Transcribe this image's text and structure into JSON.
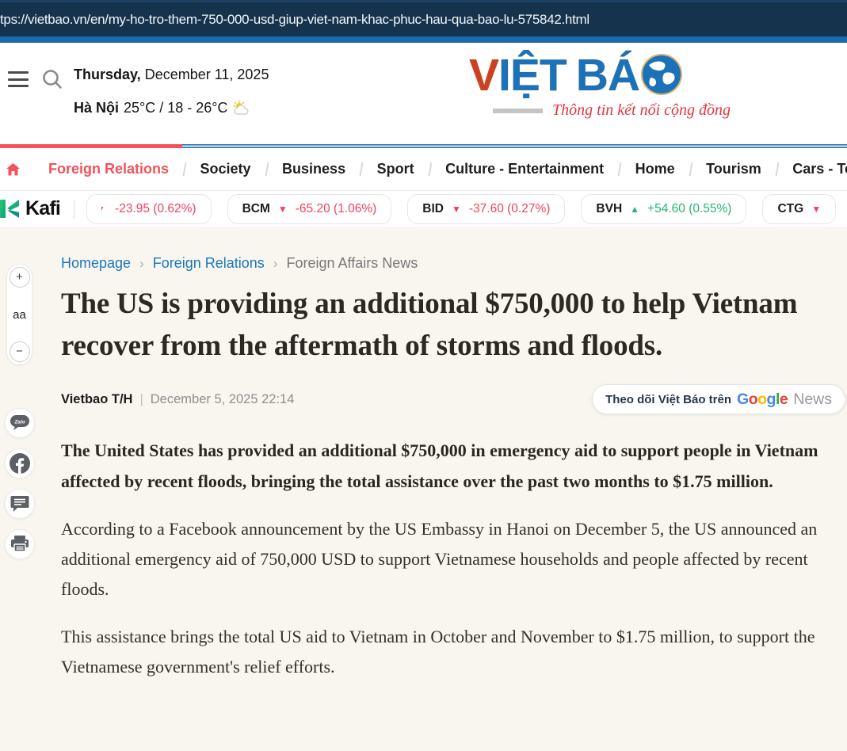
{
  "browser": {
    "url": "tps://vietbao.vn/en/my-ho-tro-them-750-000-usd-giup-viet-nam-khac-phuc-hau-qua-bao-lu-575842.html"
  },
  "header": {
    "date_bold": "Thursday,",
    "date_rest": " December 11, 2025",
    "city": "Hà Nội",
    "temperature": "25°C / 18 - 26°C",
    "logo": {
      "part_v": "V",
      "part_iet": "IỆT",
      "part_ba": "BÁ",
      "tagline": "Thông tin kết nối cộng đồng"
    }
  },
  "nav": {
    "items": [
      {
        "label": "Foreign Relations",
        "active": true
      },
      {
        "label": "Society",
        "active": false
      },
      {
        "label": "Business",
        "active": false
      },
      {
        "label": "Sport",
        "active": false
      },
      {
        "label": "Culture - Entertainment",
        "active": false
      },
      {
        "label": "Home",
        "active": false
      },
      {
        "label": "Tourism",
        "active": false
      },
      {
        "label": "Cars - Te",
        "active": false
      }
    ]
  },
  "ticker": {
    "brand": "Kafi",
    "items": [
      {
        "symbol": "",
        "direction": "down",
        "change": "-23.95 (0.62%)",
        "partial_left": true
      },
      {
        "symbol": "BCM",
        "direction": "down",
        "change": "-65.20 (1.06%)"
      },
      {
        "symbol": "BID",
        "direction": "down",
        "change": "-37.60 (0.27%)"
      },
      {
        "symbol": "BVH",
        "direction": "up",
        "change": "+54.60 (0.55%)"
      },
      {
        "symbol": "CTG",
        "direction": "down",
        "change": ""
      }
    ]
  },
  "breadcrumb": [
    {
      "label": "Homepage",
      "link": true
    },
    {
      "label": "Foreign Relations",
      "link": true
    },
    {
      "label": "Foreign Affairs News",
      "link": false
    }
  ],
  "article": {
    "title": "The US is providing an additional $750,000 to help Vietnam recover from the aftermath of storms and floods.",
    "author": "Vietbao T/H",
    "published": "December 5, 2025 22:14",
    "lede": "The United States has provided an additional $750,000 in emergency aid to support people in Vietnam affected by recent floods, bringing the total assistance over the past two months to $1.75 million.",
    "paragraphs": [
      "According to a Facebook announcement by the US Embassy in Hanoi on December 5, the US announced an additional emergency aid of 750,000 USD to support Vietnamese households and people affected by recent floods.",
      "This assistance brings the total US aid to Vietnam in October and November to $1.75 million, to support the Vietnamese government's relief efforts."
    ]
  },
  "follow_button": {
    "text": "Theo dõi Việt Báo trên",
    "google_letters": [
      {
        "ch": "G",
        "color": "#4285F4"
      },
      {
        "ch": "o",
        "color": "#EA4335"
      },
      {
        "ch": "o",
        "color": "#FBBC05"
      },
      {
        "ch": "g",
        "color": "#4285F4"
      },
      {
        "ch": "l",
        "color": "#34A853"
      },
      {
        "ch": "e",
        "color": "#EA4335"
      }
    ],
    "news": "News"
  },
  "toolbar": {
    "zoom_in": "+",
    "font_label": "aa",
    "zoom_out": "−"
  },
  "colors": {
    "navy": "#16334e",
    "strip_blue": "#1a6ab0",
    "link_blue": "#1878bc",
    "accent_red": "#f4515a",
    "ticker_red": "#f2415e",
    "ticker_green": "#27b376",
    "content_bg": "#f9f6f0"
  }
}
